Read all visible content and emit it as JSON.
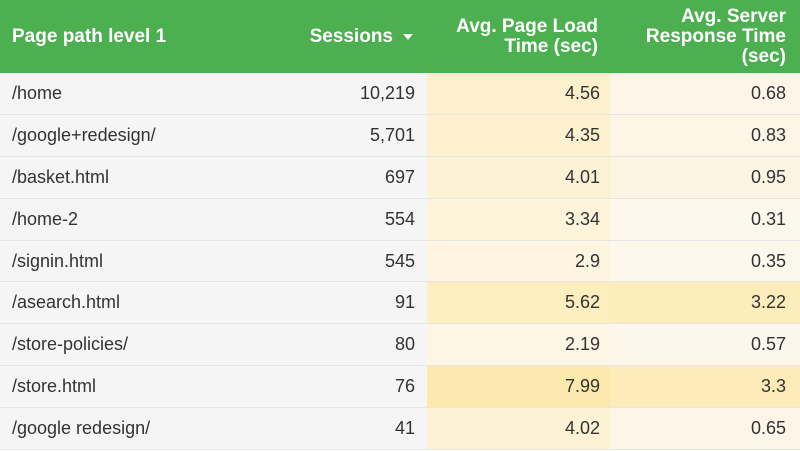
{
  "header": {
    "col_page_path": "Page path level 1",
    "col_sessions": "Sessions",
    "col_page_load_line1": "Avg. Page Load",
    "col_page_load_line2": "Time (sec)",
    "col_server_line1": "Avg. Server",
    "col_server_line2": "Response Time",
    "col_server_line3": "(sec)",
    "sort_icon": "sort-descending-icon"
  },
  "colors": {
    "header_bg": "#4caf50",
    "heat_light": "#fdf6e3",
    "heat_mid": "#fdf0cc",
    "heat_strong": "#fde9ad"
  },
  "rows": [
    {
      "path": "/home",
      "sessions": "10,219",
      "load": "4.56",
      "server": "0.68",
      "load_bg": "#fdf0cc",
      "server_bg": "#fdf6e8"
    },
    {
      "path": "/google+redesign/",
      "sessions": "5,701",
      "load": "4.35",
      "server": "0.83",
      "load_bg": "#fdf1cf",
      "server_bg": "#fdf5e6"
    },
    {
      "path": "/basket.html",
      "sessions": "697",
      "load": "4.01",
      "server": "0.95",
      "load_bg": "#fdf2d4",
      "server_bg": "#fdf5e4"
    },
    {
      "path": "/home-2",
      "sessions": "554",
      "load": "3.34",
      "server": "0.31",
      "load_bg": "#fdf4db",
      "server_bg": "#fdf7ec"
    },
    {
      "path": "/signin.html",
      "sessions": "545",
      "load": "2.9",
      "server": "0.35",
      "load_bg": "#fdf5df",
      "server_bg": "#fdf7ec"
    },
    {
      "path": "/asearch.html",
      "sessions": "91",
      "load": "5.62",
      "server": "3.22",
      "load_bg": "#fdeebf",
      "server_bg": "#fdedbd"
    },
    {
      "path": "/store-policies/",
      "sessions": "80",
      "load": "2.19",
      "server": "0.57",
      "load_bg": "#fdf6e4",
      "server_bg": "#fdf6ea"
    },
    {
      "path": "/store.html",
      "sessions": "76",
      "load": "7.99",
      "server": "3.3",
      "load_bg": "#fde9ad",
      "server_bg": "#fdecba"
    },
    {
      "path": "/google redesign/",
      "sessions": "41",
      "load": "4.02",
      "server": "0.65",
      "load_bg": "#fdf2d4",
      "server_bg": "#fdf6e8"
    }
  ]
}
